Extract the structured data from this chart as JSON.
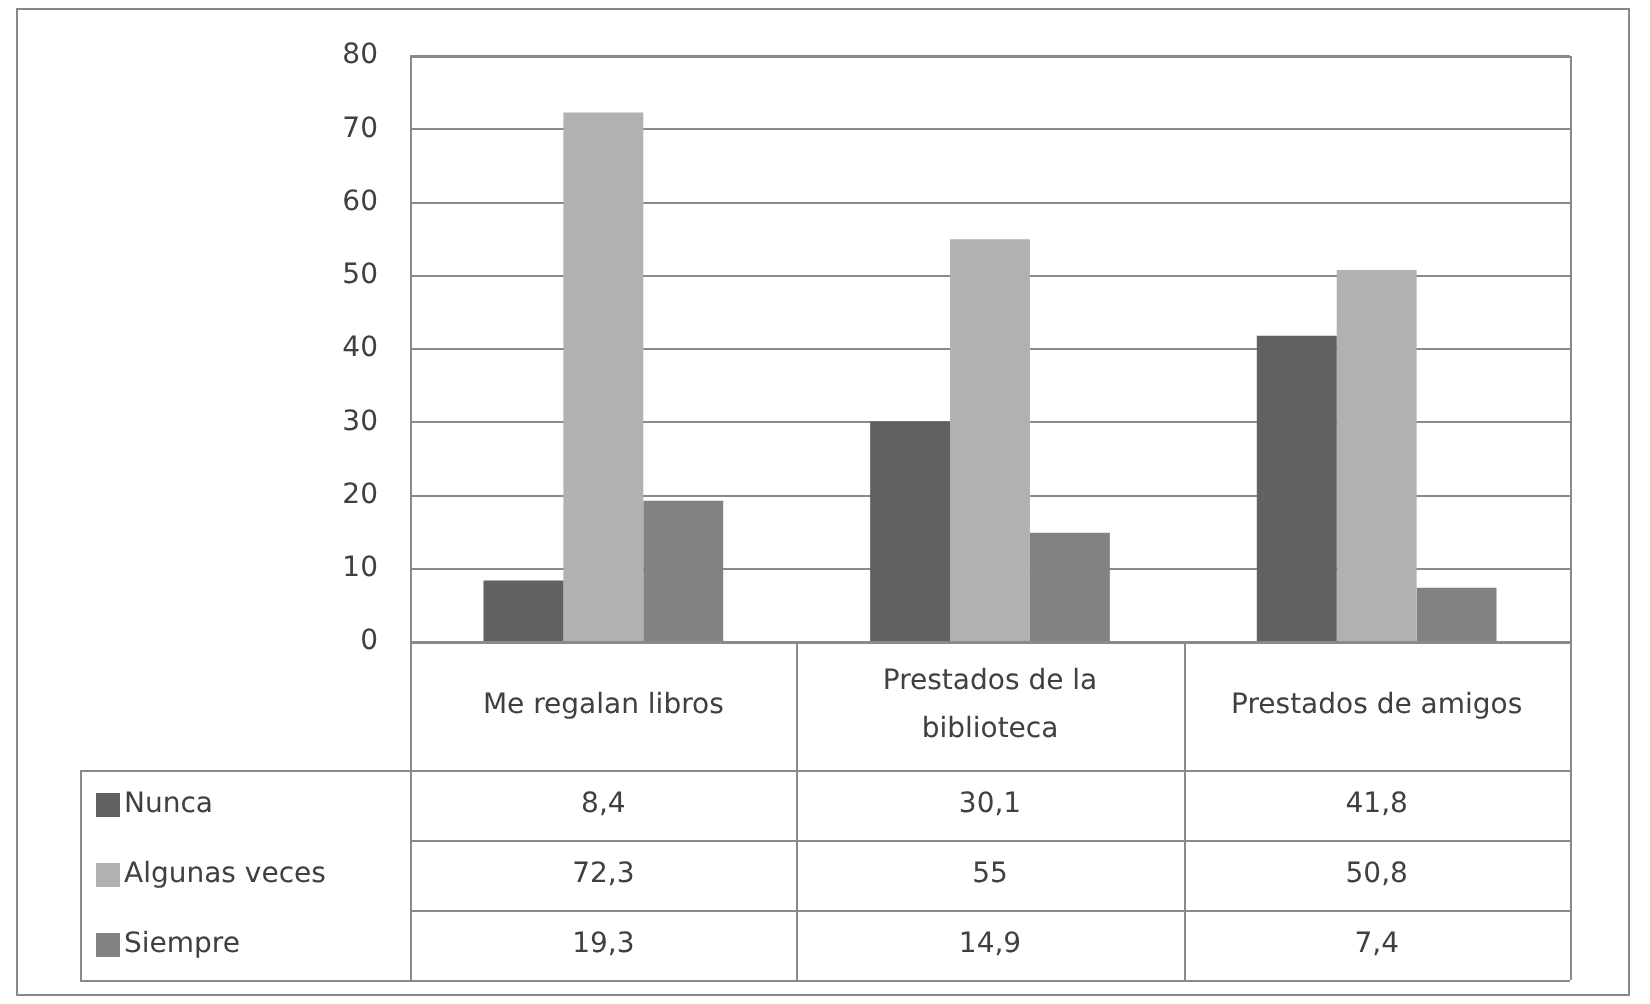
{
  "chart_data": {
    "type": "bar",
    "categories": [
      "Me regalan libros",
      "Prestados de la biblioteca",
      "Prestados de amigos"
    ],
    "series": [
      {
        "name": "Nunca",
        "color": "#616161",
        "values": [
          8.4,
          30.1,
          41.8
        ],
        "value_labels": [
          "8,4",
          "30,1",
          "41,8"
        ]
      },
      {
        "name": "Algunas veces",
        "color": "#b1b1b1",
        "values": [
          72.3,
          55,
          50.8
        ],
        "value_labels": [
          "72,3",
          "55",
          "50,8"
        ]
      },
      {
        "name": "Siempre",
        "color": "#828282",
        "values": [
          19.3,
          14.9,
          7.4
        ],
        "value_labels": [
          "19,3",
          "14,9",
          "7,4"
        ]
      }
    ],
    "ylim": [
      0,
      80
    ],
    "yticks": [
      0,
      10,
      20,
      30,
      40,
      50,
      60,
      70,
      80
    ],
    "grid": "y",
    "legend": "bottom"
  }
}
